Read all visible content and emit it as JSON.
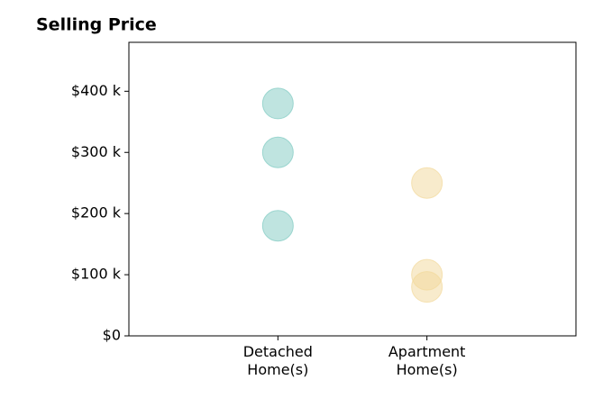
{
  "chart_data": {
    "type": "strip",
    "title": "Selling Price",
    "categories": [
      "Detached Home(s)",
      "Apartment Home(s)"
    ],
    "values": [
      [
        380000,
        300000,
        180000
      ],
      [
        250000,
        100000,
        80000
      ]
    ],
    "colors": [
      "#7fcac2",
      "#f2d89a"
    ],
    "ylim": [
      0,
      480000
    ],
    "yticks": [
      {
        "value": 0,
        "label": "$0"
      },
      {
        "value": 100000,
        "label": "$100 k"
      },
      {
        "value": 200000,
        "label": "$200 k"
      },
      {
        "value": 300000,
        "label": "$300 k"
      },
      {
        "value": 400000,
        "label": "$400 k"
      }
    ]
  }
}
